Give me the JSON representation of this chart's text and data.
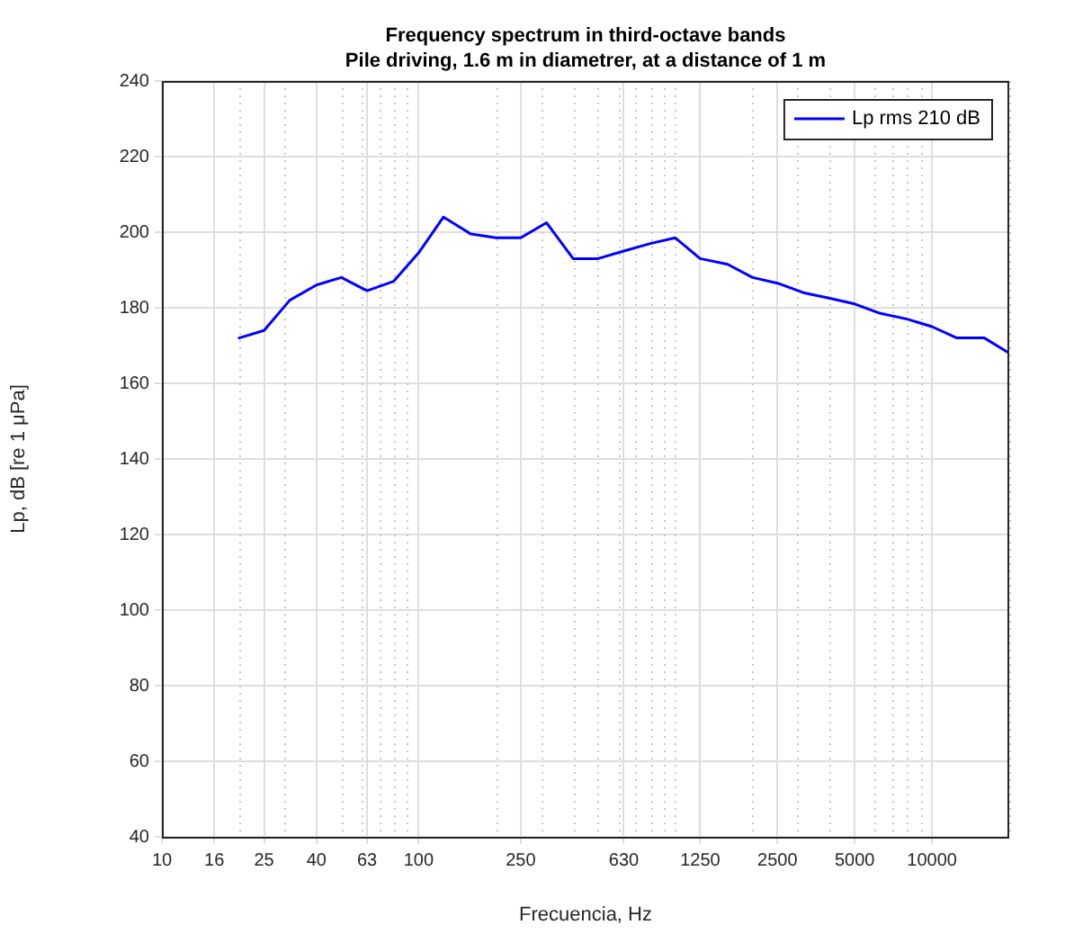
{
  "chart_data": {
    "type": "line",
    "title": "Frequency spectrum in third-octave bands",
    "subtitle": "Pile driving, 1.6 m in diametrer, at a distance of 1 m",
    "xlabel": "Frecuencia, Hz",
    "ylabel": "Lp, dB [re 1 μPa]",
    "log": "x",
    "grid": true,
    "legend": "top right",
    "marker": "none",
    "line_style": "solid",
    "xlim": [
      10,
      20000
    ],
    "ylim": [
      40,
      240
    ],
    "xticks": [
      10,
      16,
      {
        "value": 20,
        "label": null
      },
      25,
      {
        "value": 30,
        "label": null
      },
      40,
      {
        "value": 50,
        "label": null
      },
      {
        "value": 60,
        "label": null
      },
      63,
      {
        "value": 70,
        "label": null
      },
      {
        "value": 80,
        "label": null
      },
      {
        "value": 90,
        "label": null
      },
      100,
      {
        "value": 200,
        "label": null
      },
      250,
      {
        "value": 300,
        "label": null
      },
      {
        "value": 400,
        "label": null
      },
      {
        "value": 500,
        "label": null
      },
      {
        "value": 600,
        "label": null
      },
      630,
      {
        "value": 700,
        "label": null
      },
      {
        "value": 800,
        "label": null
      },
      {
        "value": 900,
        "label": null
      },
      {
        "value": 1000,
        "label": null
      },
      1250,
      {
        "value": 2000,
        "label": null
      },
      2500,
      {
        "value": 3000,
        "label": null
      },
      {
        "value": 4000,
        "label": null
      },
      5000,
      {
        "value": 6000,
        "label": null
      },
      {
        "value": 7000,
        "label": null
      },
      {
        "value": 8000,
        "label": null
      },
      {
        "value": 9000,
        "label": null
      },
      10000,
      {
        "value": 20000,
        "label": null
      }
    ],
    "yticks": [
      40,
      60,
      80,
      100,
      120,
      140,
      160,
      180,
      200,
      220,
      240
    ],
    "x": [
      20,
      25,
      31.5,
      40,
      50,
      63,
      80,
      100,
      125,
      160,
      200,
      250,
      315,
      400,
      500,
      630,
      800,
      1000,
      1250,
      1600,
      2000,
      2500,
      3150,
      4000,
      5000,
      6300,
      8000,
      10000,
      12500,
      16000,
      20000
    ],
    "series": [
      {
        "name": "Lp rms 210 dB",
        "color": "#0000ff",
        "values": [
          172,
          174,
          182,
          186,
          188,
          184.5,
          187,
          194.5,
          204,
          199.5,
          198.5,
          198.5,
          202.5,
          193,
          193,
          195,
          197,
          198.5,
          193,
          191.5,
          188,
          186.5,
          184,
          182.5,
          181,
          178.5,
          177,
          175,
          172,
          172,
          168
        ]
      }
    ]
  }
}
